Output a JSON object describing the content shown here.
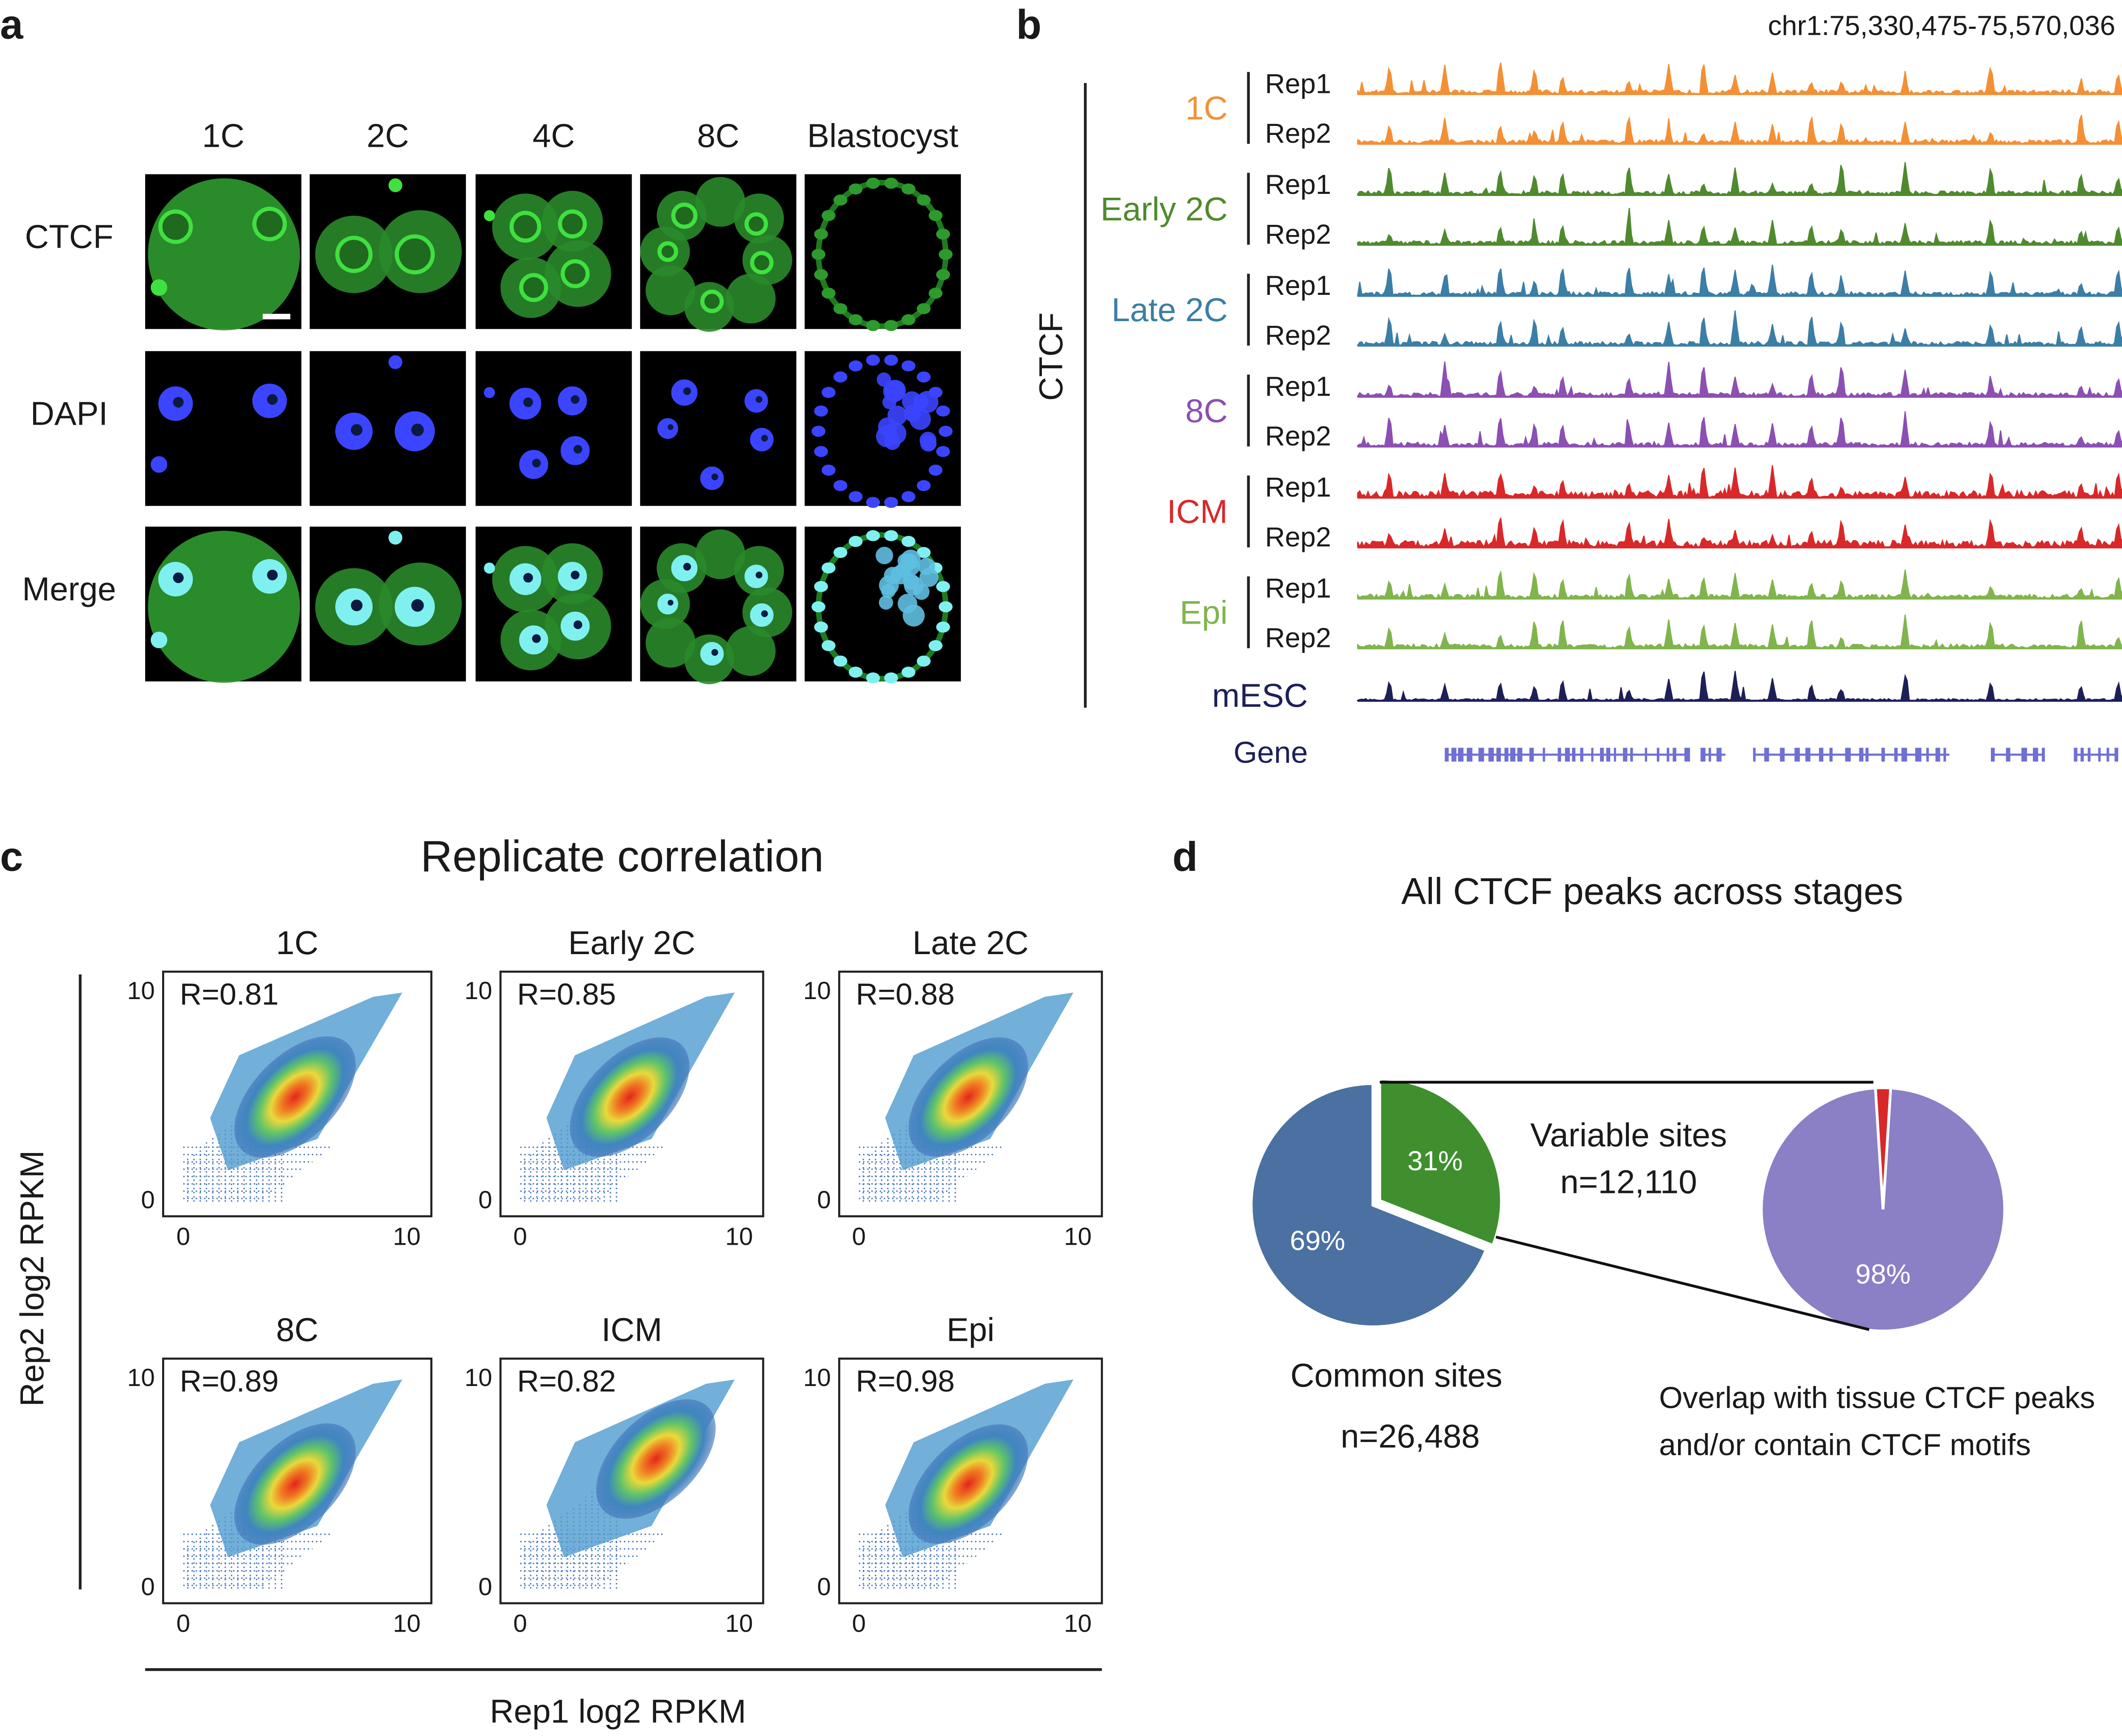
{
  "panel_a": {
    "label": "a",
    "columns": [
      "1C",
      "2C",
      "4C",
      "8C",
      "Blastocyst"
    ],
    "rows": [
      "CTCF",
      "DAPI",
      "Merge"
    ]
  },
  "panel_b": {
    "label": "b",
    "locus": "chr1:75,330,475-75,570,036",
    "track_group": "CTCF",
    "replicates": [
      "Rep1",
      "Rep2"
    ],
    "stages": [
      {
        "name": "1C",
        "color": "#f39035"
      },
      {
        "name": "Early 2C",
        "color": "#4f8a2e"
      },
      {
        "name": "Late 2C",
        "color": "#3b7ea6"
      },
      {
        "name": "8C",
        "color": "#8c4fb2"
      },
      {
        "name": "ICM",
        "color": "#d9282a"
      },
      {
        "name": "Epi",
        "color": "#80b44c"
      }
    ],
    "reference": {
      "name": "mESC",
      "color": "#1d2057"
    },
    "gene": {
      "name": "Gene",
      "color": "#6f70d2"
    }
  },
  "panel_c": {
    "label": "c",
    "title": "Replicate correlation",
    "ylabel": "Rep2 log2 RPKM",
    "xlabel": "Rep1 log2 RPKM",
    "xlim": [
      -0.9,
      11.1
    ],
    "ylim": [
      -0.7,
      11
    ],
    "xticks": [
      0,
      10
    ],
    "yticks": [
      0,
      10
    ],
    "plots": [
      {
        "title": "1C",
        "r": "R=0.81"
      },
      {
        "title": "Early 2C",
        "r": "R=0.85"
      },
      {
        "title": "Late 2C",
        "r": "R=0.88"
      },
      {
        "title": "8C",
        "r": "R=0.89"
      },
      {
        "title": "ICM",
        "r": "R=0.82"
      },
      {
        "title": "Epi",
        "r": "R=0.98"
      }
    ]
  },
  "panel_d": {
    "label": "d",
    "title": "All CTCF peaks across stages",
    "all_peaks": [
      {
        "name": "Common sites",
        "count": "n=26,488",
        "value": 69,
        "label": "69%",
        "color": "#4a71a1"
      },
      {
        "name": "Variable sites",
        "count": "n=12,110",
        "value": 31,
        "label": "31%",
        "color": "#3f8f2e"
      }
    ],
    "variable_peaks": [
      {
        "value": 98,
        "label": "98%",
        "color": "#8b7fc6"
      },
      {
        "value": 2,
        "color": "#d8282a"
      }
    ],
    "variable_note": [
      "Overlap with tissue CTCF peaks",
      "and/or contain CTCF motifs"
    ]
  }
}
